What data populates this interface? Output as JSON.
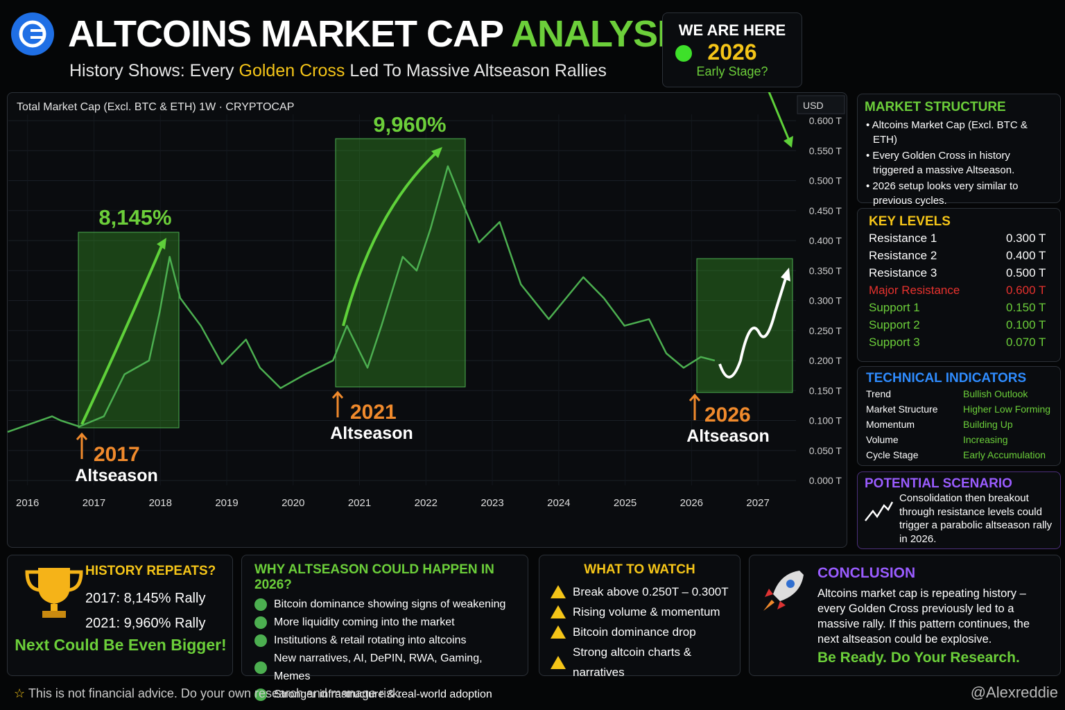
{
  "header": {
    "title_main": "ALTCOINS MARKET CAP",
    "title_accent": "ANALYSIS",
    "subtitle_pre": "History Shows: Every",
    "subtitle_accent": "Golden Cross",
    "subtitle_post": "Led To Massive Altseason Rallies"
  },
  "we_are_here": {
    "label": "WE ARE HERE",
    "year": "2026",
    "stage": "Early Stage?"
  },
  "chart_data": {
    "type": "line",
    "title": "Total Market Cap (Excl. BTC & ETH)  1W · CRYPTOCAP",
    "y_unit": "USD",
    "x": [
      2015.7,
      2016.37,
      2016.5,
      2016.78,
      2017.15,
      2017.46,
      2017.83,
      2017.99,
      2018.14,
      2018.3,
      2018.61,
      2018.93,
      2019.29,
      2019.5,
      2019.81,
      2020.18,
      2020.6,
      2020.81,
      2021.12,
      2021.33,
      2021.65,
      2021.86,
      2022.07,
      2022.33,
      2022.54,
      2022.8,
      2023.11,
      2023.43,
      2023.85,
      2024.37,
      2024.68,
      2024.99,
      2025.36,
      2025.62,
      2025.88,
      2026.14,
      2026.35
    ],
    "values": [
      0.081,
      0.107,
      0.1,
      0.09,
      0.107,
      0.177,
      0.2,
      0.281,
      0.373,
      0.304,
      0.258,
      0.194,
      0.235,
      0.188,
      0.154,
      0.177,
      0.2,
      0.258,
      0.188,
      0.258,
      0.373,
      0.35,
      0.42,
      0.524,
      0.466,
      0.397,
      0.431,
      0.327,
      0.269,
      0.339,
      0.304,
      0.258,
      0.269,
      0.212,
      0.188,
      0.206,
      0.2
    ],
    "color": "#4caf50",
    "xlim": [
      2015.7,
      2027.5
    ],
    "xticks": [
      2016,
      2017,
      2018,
      2019,
      2020,
      2021,
      2022,
      2023,
      2024,
      2025,
      2026,
      2027
    ],
    "ylim": [
      0,
      0.6
    ],
    "yticks": [
      {
        "value": 0,
        "label": "0.000 T"
      },
      {
        "value": 0.05,
        "label": "0.050 T"
      },
      {
        "value": 0.1,
        "label": "0.100 T"
      },
      {
        "value": 0.15,
        "label": "0.150 T"
      },
      {
        "value": 0.2,
        "label": "0.200 T"
      },
      {
        "value": 0.25,
        "label": "0.250 T"
      },
      {
        "value": 0.3,
        "label": "0.300 T"
      },
      {
        "value": 0.35,
        "label": "0.350 T"
      },
      {
        "value": 0.4,
        "label": "0.400 T"
      },
      {
        "value": 0.45,
        "label": "0.450 T"
      },
      {
        "value": 0.5,
        "label": "0.500 T"
      },
      {
        "value": 0.55,
        "label": "0.550 T"
      },
      {
        "value": 0.6,
        "label": "0.600 T"
      }
    ],
    "grid": true,
    "annotations": [
      "8,145%",
      "2017",
      "Altseason",
      "9,960%",
      "2021",
      "Altseason",
      "2026",
      "Altseason"
    ]
  },
  "market_structure": {
    "title": "MARKET STRUCTURE",
    "items": [
      "Altcoins Market Cap (Excl. BTC & ETH)",
      "Every Golden Cross in history triggered a massive Altseason.",
      "2026 setup looks very similar to previous cycles."
    ]
  },
  "key_levels": {
    "title": "KEY LEVELS",
    "rows": [
      [
        "Resistance 1",
        "0.300 T"
      ],
      [
        "Resistance 2",
        "0.400 T"
      ],
      [
        "Resistance 3",
        "0.500 T"
      ],
      [
        "Major Resistance",
        "0.600 T"
      ],
      [
        "Support 1",
        "0.150 T"
      ],
      [
        "Support 2",
        "0.100 T"
      ],
      [
        "Support 3",
        "0.070 T"
      ]
    ]
  },
  "technical_indicators": {
    "title": "TECHNICAL INDICATORS",
    "rows": [
      [
        "Trend",
        "Bullish Outlook"
      ],
      [
        "Market Structure",
        "Higher Low Forming"
      ],
      [
        "Momentum",
        "Building Up"
      ],
      [
        "Volume",
        "Increasing"
      ],
      [
        "Cycle Stage",
        "Early Accumulation"
      ]
    ]
  },
  "potential_scenario": {
    "title": "POTENTIAL SCENARIO",
    "text": "Consolidation then breakout through resistance levels could trigger a parabolic altseason rally in 2026."
  },
  "history_repeats": {
    "title": "HISTORY REPEATS?",
    "lines": [
      "2017: 8,145% Rally",
      "2021: 9,960% Rally"
    ],
    "tagline": "Next Could Be Even Bigger!"
  },
  "why_altseason": {
    "title": "WHY ALTSEASON COULD HAPPEN IN 2026?",
    "items": [
      "Bitcoin dominance showing signs of weakening",
      "More liquidity coming into the market",
      "Institutions & retail rotating into altcoins",
      "New narratives, AI, DePIN, RWA, Gaming, Memes",
      "Stronger infrastructure & real-world adoption"
    ]
  },
  "what_to_watch": {
    "title": "WHAT TO WATCH",
    "items": [
      "Break above 0.250T – 0.300T",
      "Rising volume & momentum",
      "Bitcoin dominance drop",
      "Strong altcoin charts & narratives"
    ]
  },
  "conclusion": {
    "title": "CONCLUSION",
    "text": "Altcoins market cap is repeating history – every Golden Cross previously led to a massive rally. If this pattern continues, the next altseason could be explosive.",
    "tagline": "Be Ready. Do Your Research."
  },
  "footer": {
    "disclaimer": "This is not financial advice. Do your own research and manage risk.",
    "handle": "@Alexreddie"
  }
}
